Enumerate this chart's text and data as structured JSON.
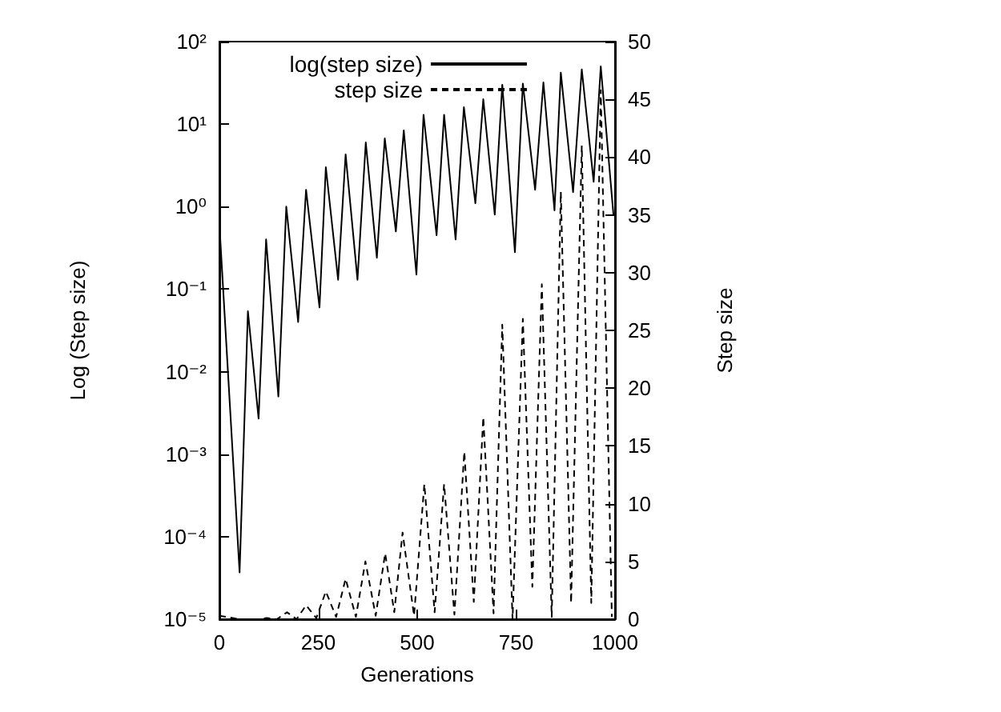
{
  "chart_data": {
    "type": "line",
    "xlabel": "Generations",
    "ylabel": "Log (Step size)",
    "y2label": "Step size",
    "log": "y",
    "grid": false,
    "legend": "top right",
    "marker": "none",
    "xlim": [
      0,
      1000
    ],
    "xticks": [
      0,
      250,
      500,
      750,
      1000
    ],
    "ylim": [
      1e-05,
      100
    ],
    "yticks": [
      {
        "value": 1e-05,
        "label": "10⁻⁵"
      },
      {
        "value": 0.0001,
        "label": "10⁻⁴"
      },
      {
        "value": 0.001,
        "label": "10⁻³"
      },
      {
        "value": 0.01,
        "label": "10⁻²"
      },
      {
        "value": 0.1,
        "label": "10⁻¹"
      },
      {
        "value": 1,
        "label": "10⁰"
      },
      {
        "value": 10,
        "label": "10¹"
      },
      {
        "value": 100,
        "label": "10²"
      }
    ],
    "y2lim": [
      0,
      50
    ],
    "y2ticks": [
      0,
      5,
      10,
      15,
      20,
      25,
      30,
      35,
      40,
      45,
      50
    ],
    "series": [
      {
        "name": "log(step size)",
        "color": "#000000",
        "line_style": "solid",
        "x": [
          0,
          51,
          72,
          99,
          118,
          149,
          169,
          199,
          219,
          253,
          269,
          300,
          319,
          349,
          370,
          398,
          418,
          446,
          466,
          498,
          516,
          549,
          568,
          597,
          618,
          647,
          667,
          696,
          715,
          747,
          767,
          798,
          819,
          847,
          863,
          894,
          916,
          946,
          964,
          996
        ],
        "values": [
          0.6,
          3.7e-05,
          0.054,
          0.0027,
          0.4,
          0.005,
          1.0,
          0.04,
          1.6,
          0.06,
          3,
          0.13,
          4.3,
          0.13,
          6,
          0.24,
          6.7,
          0.5,
          8.4,
          0.15,
          13,
          0.45,
          13,
          0.4,
          16,
          1.1,
          20,
          0.8,
          30,
          0.28,
          31,
          1.6,
          32,
          0.9,
          42,
          1.5,
          46,
          2,
          50,
          0.8
        ]
      },
      {
        "name": "step size",
        "color": "#000000",
        "line_style": "dashed",
        "axis": "y2",
        "x": [
          0,
          50,
          100,
          120,
          145,
          171,
          195,
          219,
          245,
          269,
          295,
          319,
          345,
          369,
          395,
          419,
          442,
          463,
          492,
          518,
          544,
          568,
          594,
          619,
          643,
          667,
          693,
          715,
          741,
          767,
          791,
          815,
          840,
          863,
          889,
          916,
          940,
          964,
          992
        ],
        "values": [
          0.3,
          0,
          0,
          0.1,
          0,
          0.6,
          0,
          1.2,
          0.1,
          2.4,
          0.2,
          3.5,
          0.2,
          5,
          0.3,
          5.7,
          0.6,
          7.5,
          0.3,
          11.7,
          0.6,
          11.7,
          0.4,
          14.5,
          1.5,
          17.5,
          0.5,
          25.5,
          0,
          26,
          2.8,
          29,
          0.2,
          37,
          1.4,
          41,
          1.4,
          45.8,
          0.2
        ]
      }
    ]
  }
}
